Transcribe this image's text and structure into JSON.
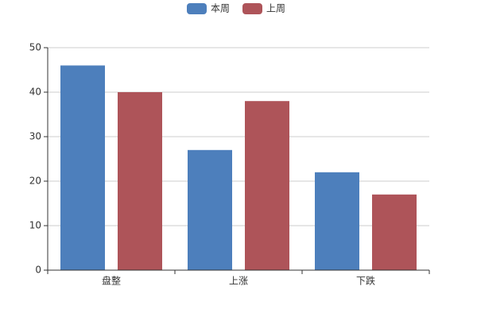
{
  "chart_data": {
    "type": "bar",
    "categories": [
      "盘整",
      "上涨",
      "下跌"
    ],
    "series": [
      {
        "name": "本周",
        "color": "#4d7fbc",
        "values": [
          46,
          27,
          22
        ]
      },
      {
        "name": "上周",
        "color": "#ae5459",
        "values": [
          40,
          38,
          17
        ]
      }
    ],
    "ylim": [
      0,
      50
    ],
    "yticks": [
      0,
      10,
      20,
      30,
      40,
      50
    ],
    "grid": true,
    "legend": "top"
  }
}
